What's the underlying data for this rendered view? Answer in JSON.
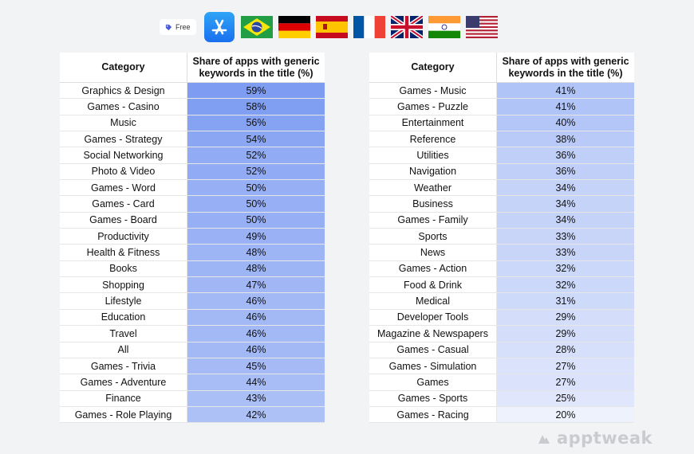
{
  "header": {
    "free_label": "Free",
    "icons": [
      "app-store-icon",
      "brazil-flag",
      "germany-flag",
      "spain-flag",
      "france-flag",
      "uk-flag",
      "india-flag",
      "usa-flag"
    ]
  },
  "colors": {
    "high_fill": "#7d9cf2",
    "low_fill": "#eef2fd"
  },
  "chart_data": {
    "type": "table",
    "columns": [
      "Category",
      "Share of apps with generic keywords in the title (%)"
    ],
    "tables": [
      {
        "rows": [
          {
            "category": "Graphics & Design",
            "share": "59%",
            "value": 59
          },
          {
            "category": "Games - Casino",
            "share": "58%",
            "value": 58
          },
          {
            "category": "Music",
            "share": "56%",
            "value": 56
          },
          {
            "category": "Games - Strategy",
            "share": "54%",
            "value": 54
          },
          {
            "category": "Social Networking",
            "share": "52%",
            "value": 52
          },
          {
            "category": "Photo & Video",
            "share": "52%",
            "value": 52
          },
          {
            "category": "Games - Word",
            "share": "50%",
            "value": 50
          },
          {
            "category": "Games - Card",
            "share": "50%",
            "value": 50
          },
          {
            "category": "Games - Board",
            "share": "50%",
            "value": 50
          },
          {
            "category": "Productivity",
            "share": "49%",
            "value": 49
          },
          {
            "category": "Health & Fitness",
            "share": "48%",
            "value": 48
          },
          {
            "category": "Books",
            "share": "48%",
            "value": 48
          },
          {
            "category": "Shopping",
            "share": "47%",
            "value": 47
          },
          {
            "category": "Lifestyle",
            "share": "46%",
            "value": 46
          },
          {
            "category": "Education",
            "share": "46%",
            "value": 46
          },
          {
            "category": "Travel",
            "share": "46%",
            "value": 46
          },
          {
            "category": "All",
            "share": "46%",
            "value": 46
          },
          {
            "category": "Games - Trivia",
            "share": "45%",
            "value": 45
          },
          {
            "category": "Games - Adventure",
            "share": "44%",
            "value": 44
          },
          {
            "category": "Finance",
            "share": "43%",
            "value": 43
          },
          {
            "category": "Games - Role Playing",
            "share": "42%",
            "value": 42
          }
        ]
      },
      {
        "rows": [
          {
            "category": "Games - Music",
            "share": "41%",
            "value": 41
          },
          {
            "category": "Games - Puzzle",
            "share": "41%",
            "value": 41
          },
          {
            "category": "Entertainment",
            "share": "40%",
            "value": 40
          },
          {
            "category": "Reference",
            "share": "38%",
            "value": 38
          },
          {
            "category": "Utilities",
            "share": "36%",
            "value": 36
          },
          {
            "category": "Navigation",
            "share": "36%",
            "value": 36
          },
          {
            "category": "Weather",
            "share": "34%",
            "value": 34
          },
          {
            "category": "Business",
            "share": "34%",
            "value": 34
          },
          {
            "category": "Games - Family",
            "share": "34%",
            "value": 34
          },
          {
            "category": "Sports",
            "share": "33%",
            "value": 33
          },
          {
            "category": "News",
            "share": "33%",
            "value": 33
          },
          {
            "category": "Games - Action",
            "share": "32%",
            "value": 32
          },
          {
            "category": "Food & Drink",
            "share": "32%",
            "value": 32
          },
          {
            "category": "Medical",
            "share": "31%",
            "value": 31
          },
          {
            "category": "Developer Tools",
            "share": "29%",
            "value": 29
          },
          {
            "category": "Magazine & Newspapers",
            "share": "29%",
            "value": 29
          },
          {
            "category": "Games - Casual",
            "share": "28%",
            "value": 28
          },
          {
            "category": "Games - Simulation",
            "share": "27%",
            "value": 27
          },
          {
            "category": "Games",
            "share": "27%",
            "value": 27
          },
          {
            "category": "Games - Sports",
            "share": "25%",
            "value": 25
          },
          {
            "category": "Games - Racing",
            "share": "20%",
            "value": 20
          }
        ]
      }
    ]
  },
  "watermark": "apptweak"
}
